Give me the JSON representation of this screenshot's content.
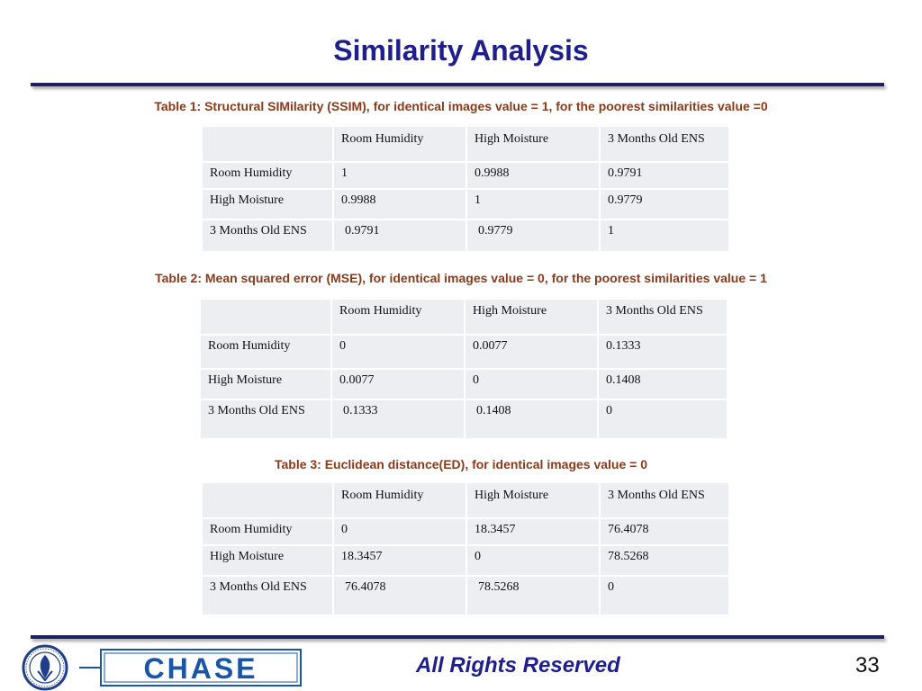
{
  "slide": {
    "title": "Similarity Analysis",
    "footer_text": "All Rights Reserved",
    "page_number": "33",
    "logo_text": "CHASE",
    "seal_text": "UNIVERSITY OF CONNECTICUT 1881"
  },
  "colors": {
    "title": "#1f1f8c",
    "caption": "#8a3a1a",
    "rule": "#1f2060",
    "cell_bg": "#eceef2",
    "logo_blue": "#1a56a8"
  },
  "tables": [
    {
      "caption": "Table 1: Structural SIMilarity (SSIM), for identical images value = 1, for the poorest similarities value =0",
      "header": [
        "",
        "Room Humidity",
        "High Moisture",
        "3 Months Old ENS"
      ],
      "rows": [
        [
          "Room Humidity",
          "1",
          "0.9988",
          "0.9791"
        ],
        [
          "High Moisture",
          "0.9988",
          "1",
          "0.9779"
        ],
        [
          "3 Months Old ENS",
          "0.9791",
          "0.9779",
          "1"
        ]
      ]
    },
    {
      "caption": "Table 2: Mean squared error (MSE), for identical images value = 0, for the poorest similarities value = 1",
      "header": [
        "",
        "Room Humidity",
        "High Moisture",
        "3 Months Old ENS"
      ],
      "rows": [
        [
          "Room Humidity",
          "0",
          "0.0077",
          "0.1333"
        ],
        [
          "High Moisture",
          "0.0077",
          "0",
          "0.1408"
        ],
        [
          "3 Months Old ENS",
          "0.1333",
          "0.1408",
          "0"
        ]
      ]
    },
    {
      "caption": "Table 3: Euclidean distance(ED), for identical images value = 0",
      "header": [
        "",
        "Room Humidity",
        "High Moisture",
        "3 Months Old ENS"
      ],
      "rows": [
        [
          "Room Humidity",
          "0",
          "18.3457",
          "76.4078"
        ],
        [
          "High Moisture",
          "18.3457",
          "0",
          "78.5268"
        ],
        [
          "3 Months Old ENS",
          "76.4078",
          "78.5268",
          "0"
        ]
      ]
    }
  ]
}
